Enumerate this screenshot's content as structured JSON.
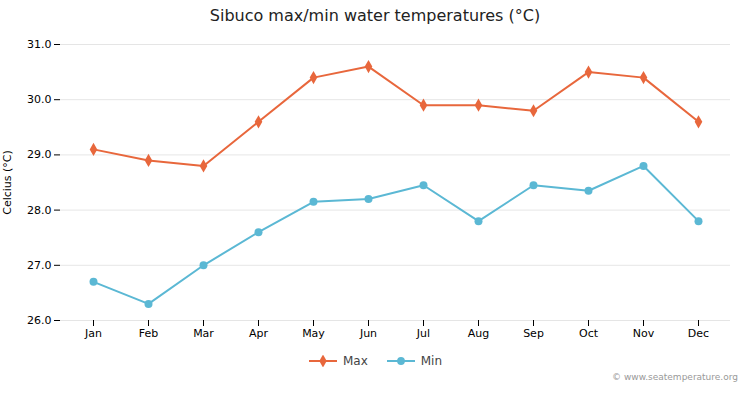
{
  "chart_data": {
    "type": "line",
    "title": "Sibuco max/min water temperatures (°C)",
    "ylabel": "Celcius (°C)",
    "categories": [
      "Jan",
      "Feb",
      "Mar",
      "Apr",
      "May",
      "Jun",
      "Jul",
      "Aug",
      "Sep",
      "Oct",
      "Nov",
      "Dec"
    ],
    "series": [
      {
        "name": "Max",
        "color": "#e8673c",
        "marker": "diamond",
        "values": [
          29.1,
          28.9,
          28.8,
          29.6,
          30.4,
          30.6,
          29.9,
          29.9,
          29.8,
          30.5,
          30.4,
          29.6
        ]
      },
      {
        "name": "Min",
        "color": "#5bb8d4",
        "marker": "circle",
        "values": [
          26.7,
          26.3,
          27.0,
          27.6,
          28.15,
          28.2,
          28.45,
          27.8,
          28.45,
          28.35,
          28.8,
          27.8
        ]
      }
    ],
    "ylim": [
      26,
      31
    ],
    "yticks": [
      26,
      27,
      28,
      29,
      30,
      31
    ],
    "grid": true,
    "legend": "bottom",
    "annotations": [
      "© www.seatemperature.org"
    ]
  }
}
